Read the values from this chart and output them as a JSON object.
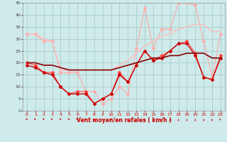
{
  "xlabel": "Vent moyen/en rafales ( km/h )",
  "background_color": "#ceeaea",
  "grid_color": "#aacccc",
  "xlim": [
    -0.5,
    23.5
  ],
  "ylim": [
    0,
    45
  ],
  "yticks": [
    0,
    5,
    10,
    15,
    20,
    25,
    30,
    35,
    40,
    45
  ],
  "xticks": [
    0,
    1,
    2,
    3,
    4,
    5,
    6,
    7,
    8,
    9,
    10,
    11,
    12,
    13,
    14,
    15,
    16,
    17,
    18,
    19,
    20,
    21,
    22,
    23
  ],
  "series": [
    {
      "x": [
        0,
        1,
        2,
        3,
        4,
        5,
        6,
        7,
        8,
        9,
        10,
        11,
        12,
        13,
        14,
        15,
        16,
        17,
        18,
        19,
        20,
        21,
        22,
        23
      ],
      "y": [
        32,
        32,
        29,
        29,
        16,
        16,
        16,
        8,
        8,
        3,
        5,
        10,
        7,
        26,
        43,
        26,
        34,
        34,
        45,
        45,
        44,
        29,
        14,
        32
      ],
      "color": "#ffaaaa",
      "lw": 0.8,
      "marker": "D",
      "ms": 2.0
    },
    {
      "x": [
        0,
        1,
        2,
        3,
        4,
        5,
        6,
        7,
        8,
        9,
        10,
        11,
        12,
        13,
        14,
        15,
        16,
        17,
        18,
        19,
        20,
        21,
        22,
        23
      ],
      "y": [
        32,
        32,
        30,
        29,
        17,
        17,
        17,
        17,
        17,
        17,
        17,
        19,
        21,
        24,
        27,
        29,
        31,
        32,
        34,
        35,
        36,
        36,
        33,
        33
      ],
      "color": "#ffbbbb",
      "lw": 1.0,
      "marker": null,
      "ms": 0
    },
    {
      "x": [
        0,
        1,
        2,
        3,
        4,
        5,
        6,
        7,
        8,
        9,
        10,
        11,
        12,
        13,
        14,
        15,
        16,
        17,
        18,
        19,
        20,
        21,
        22,
        23
      ],
      "y": [
        20,
        19,
        16,
        16,
        10,
        7,
        8,
        8,
        3,
        5,
        7,
        16,
        12,
        19,
        25,
        21,
        23,
        25,
        28,
        29,
        24,
        14,
        13,
        23
      ],
      "color": "#ff4444",
      "lw": 0.8,
      "marker": "D",
      "ms": 2.0
    },
    {
      "x": [
        0,
        1,
        2,
        3,
        4,
        5,
        6,
        7,
        8,
        9,
        10,
        11,
        12,
        13,
        14,
        15,
        16,
        17,
        18,
        19,
        20,
        21,
        22,
        23
      ],
      "y": [
        20,
        20,
        19,
        19,
        18,
        17,
        17,
        17,
        17,
        17,
        17,
        18,
        19,
        20,
        21,
        22,
        22,
        23,
        23,
        24,
        24,
        24,
        22,
        22
      ],
      "color": "#880000",
      "lw": 1.2,
      "marker": null,
      "ms": 0
    },
    {
      "x": [
        0,
        1,
        2,
        3,
        4,
        5,
        6,
        7,
        8,
        9,
        10,
        11,
        12,
        13,
        14,
        15,
        16,
        17,
        18,
        19,
        20,
        21,
        22,
        23
      ],
      "y": [
        19,
        18,
        16,
        15,
        10,
        7,
        7,
        7,
        3,
        5,
        7,
        15,
        12,
        19,
        25,
        21,
        22,
        25,
        28,
        28,
        23,
        14,
        13,
        22
      ],
      "color": "#cc0000",
      "lw": 1.0,
      "marker": "D",
      "ms": 2.0
    }
  ],
  "wind_directions": [
    0,
    0,
    0,
    0,
    0,
    0,
    0,
    0,
    90,
    135,
    180,
    90,
    90,
    90,
    90,
    90,
    90,
    90,
    90,
    90,
    90,
    90,
    90,
    45
  ],
  "arrow_color": "#cc0000"
}
